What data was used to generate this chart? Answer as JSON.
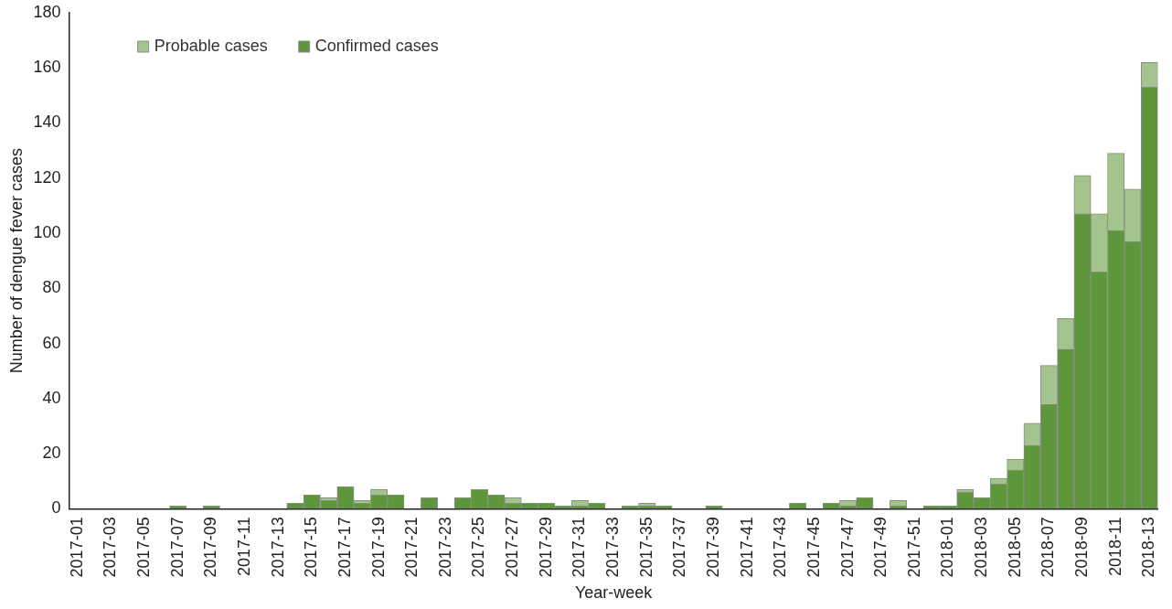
{
  "chart_data": {
    "type": "bar",
    "stacked": true,
    "xlabel": "Year-week",
    "ylabel": "Number of dengue fever cases",
    "categories": [
      "2017-01",
      null,
      "2017-03",
      null,
      "2017-05",
      null,
      "2017-07",
      null,
      "2017-09",
      null,
      "2017-11",
      null,
      "2017-13",
      null,
      "2017-15",
      null,
      "2017-17",
      null,
      "2017-19",
      null,
      "2017-21",
      null,
      "2017-23",
      null,
      "2017-25",
      null,
      "2017-27",
      null,
      "2017-29",
      null,
      "2017-31",
      null,
      "2017-33",
      null,
      "2017-35",
      null,
      "2017-37",
      null,
      "2017-39",
      null,
      "2017-41",
      null,
      "2017-43",
      null,
      "2017-45",
      null,
      "2017-47",
      null,
      "2017-49",
      null,
      "2017-51",
      null,
      "2018-01",
      null,
      "2018-03",
      null,
      "2018-05",
      null,
      "2018-07",
      null,
      "2018-09",
      null,
      "2018-11",
      null,
      "2018-13"
    ],
    "series": [
      {
        "name": "Confirmed cases",
        "color": "#5e963b",
        "values": [
          0,
          0,
          0,
          0,
          0,
          0,
          1,
          0,
          1,
          0,
          0,
          0,
          0,
          2,
          5,
          3,
          8,
          2,
          5,
          5,
          0,
          4,
          0,
          4,
          7,
          5,
          2,
          2,
          2,
          1,
          1,
          2,
          0,
          1,
          1,
          1,
          0,
          0,
          1,
          0,
          0,
          0,
          0,
          2,
          0,
          2,
          1,
          4,
          0,
          1,
          0,
          1,
          1,
          6,
          4,
          9,
          14,
          23,
          38,
          58,
          107,
          86,
          101,
          97,
          153
        ]
      },
      {
        "name": "Probable cases",
        "color": "#a3c48c",
        "values": [
          0,
          0,
          0,
          0,
          0,
          0,
          0,
          0,
          0,
          0,
          0,
          0,
          0,
          0,
          0,
          1,
          0,
          1,
          2,
          0,
          0,
          0,
          0,
          0,
          0,
          0,
          2,
          0,
          0,
          0,
          2,
          0,
          0,
          0,
          1,
          0,
          0,
          0,
          0,
          0,
          0,
          0,
          0,
          0,
          0,
          0,
          2,
          0,
          0,
          2,
          0,
          0,
          0,
          1,
          0,
          2,
          4,
          8,
          14,
          11,
          14,
          21,
          28,
          19,
          9
        ]
      }
    ],
    "ylim": [
      0,
      180
    ],
    "yticks": [
      0,
      20,
      40,
      60,
      80,
      100,
      120,
      140,
      160,
      180
    ],
    "grid": false,
    "legend": "top left"
  }
}
